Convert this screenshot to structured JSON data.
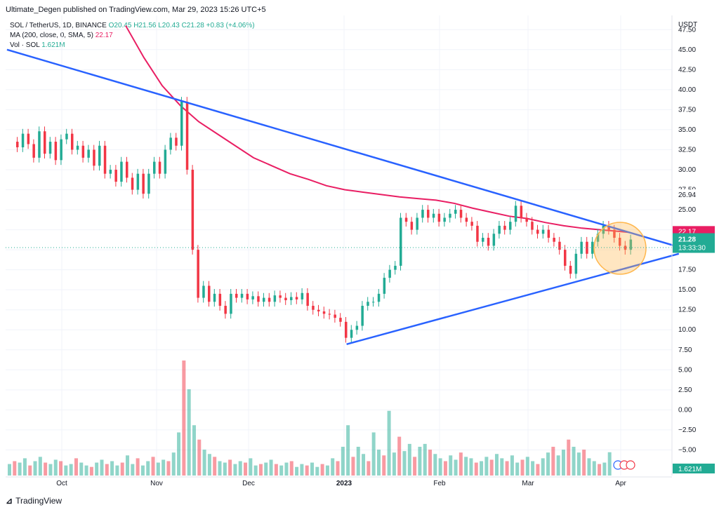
{
  "header": {
    "publisher": "Ultimate_Degen published on TradingView.com, Mar 29, 2023 15:26 UTC+5"
  },
  "legend": {
    "symbol": "SOL / TetherUS, 1D, BINANCE",
    "ohlc": "O20.45 H21.56 L20.43 C21.28 +0.83 (+4.06%)",
    "ma_label": "MA (200, close, 0, SMA, 5)",
    "ma_value": "22.17",
    "vol_label": "Vol · SOL",
    "vol_value": "1.621M"
  },
  "footer": {
    "brand": "TradingView"
  },
  "colors": {
    "up": "#22ab94",
    "down": "#f23645",
    "ma": "#e91e63",
    "trend": "#2962ff",
    "highlight": "#ffb74d"
  },
  "chart_data": {
    "type": "candlestick",
    "currency": "USDT",
    "y_ticks": [
      "47.50",
      "45.00",
      "42.50",
      "40.00",
      "37.50",
      "35.00",
      "32.50",
      "30.00",
      "27.50",
      "25.00",
      "22.50",
      "20.00",
      "17.50",
      "15.00",
      "12.50",
      "10.00",
      "7.50",
      "5.00",
      "2.50",
      "0.00",
      "−2.50",
      "−5.00"
    ],
    "x_ticks": [
      "Oct",
      "Nov",
      "Dec",
      "2023",
      "Feb",
      "Mar",
      "Apr"
    ],
    "price_labels": {
      "high": "26.94",
      "ma": "22.17",
      "last": "21.28",
      "countdown": "13:33:30",
      "volume": "1.621M"
    },
    "price_path": [
      [
        3,
        33.5
      ],
      [
        5,
        32.8
      ],
      [
        8,
        34.5
      ],
      [
        11,
        33.2
      ],
      [
        14,
        31.5
      ],
      [
        17,
        34.8
      ],
      [
        20,
        32.0
      ],
      [
        23,
        33.5
      ],
      [
        26,
        31.2
      ],
      [
        29,
        33.8
      ],
      [
        32,
        34.5
      ],
      [
        35,
        32.5
      ],
      [
        38,
        33.0
      ],
      [
        41,
        31.5
      ],
      [
        44,
        32.5
      ],
      [
        47,
        30.5
      ],
      [
        50,
        33.0
      ],
      [
        53,
        29.5
      ],
      [
        56,
        30.0
      ],
      [
        59,
        28.5
      ],
      [
        62,
        31.0
      ],
      [
        65,
        29.0
      ],
      [
        68,
        27.5
      ],
      [
        71,
        29.5
      ],
      [
        74,
        27.0
      ],
      [
        77,
        29.5
      ],
      [
        80,
        31.0
      ],
      [
        83,
        29.5
      ],
      [
        86,
        32.5
      ],
      [
        89,
        34.0
      ],
      [
        92,
        33.0
      ],
      [
        95,
        38.5
      ],
      [
        98,
        30.0
      ],
      [
        101,
        20.0
      ],
      [
        104,
        14.0
      ],
      [
        107,
        15.5
      ],
      [
        110,
        13.5
      ],
      [
        113,
        14.5
      ],
      [
        116,
        13.0
      ],
      [
        119,
        12.0
      ],
      [
        122,
        14.5
      ],
      [
        125,
        14.0
      ],
      [
        128,
        14.5
      ],
      [
        131,
        13.8
      ],
      [
        134,
        14.2
      ],
      [
        137,
        13.5
      ],
      [
        140,
        14.0
      ],
      [
        143,
        13.5
      ],
      [
        146,
        14.3
      ],
      [
        149,
        14.0
      ],
      [
        152,
        13.7
      ],
      [
        155,
        14.1
      ],
      [
        158,
        13.8
      ],
      [
        161,
        14.6
      ],
      [
        164,
        13.0
      ],
      [
        167,
        12.5
      ],
      [
        170,
        12.3
      ],
      [
        173,
        12.0
      ],
      [
        176,
        11.9
      ],
      [
        179,
        11.5
      ],
      [
        182,
        11.0
      ],
      [
        185,
        9.0
      ],
      [
        188,
        10.0
      ],
      [
        191,
        10.5
      ],
      [
        194,
        13.0
      ],
      [
        197,
        13.5
      ],
      [
        200,
        13.5
      ],
      [
        203,
        14.5
      ],
      [
        206,
        16.5
      ],
      [
        209,
        17.5
      ],
      [
        212,
        18.0
      ],
      [
        215,
        24.0
      ],
      [
        218,
        23.5
      ],
      [
        221,
        22.5
      ],
      [
        224,
        24.0
      ],
      [
        227,
        25.0
      ],
      [
        230,
        24.0
      ],
      [
        233,
        24.5
      ],
      [
        236,
        23.5
      ],
      [
        239,
        24.0
      ],
      [
        242,
        24.5
      ],
      [
        245,
        25.0
      ],
      [
        248,
        24.0
      ],
      [
        251,
        23.5
      ],
      [
        254,
        23.0
      ],
      [
        257,
        21.0
      ],
      [
        260,
        21.5
      ],
      [
        263,
        20.5
      ],
      [
        266,
        22.0
      ],
      [
        269,
        23.0
      ],
      [
        272,
        22.5
      ],
      [
        275,
        23.5
      ],
      [
        278,
        25.5
      ],
      [
        281,
        24.0
      ],
      [
        284,
        23.5
      ],
      [
        287,
        22.5
      ],
      [
        290,
        22.0
      ],
      [
        293,
        22.5
      ],
      [
        296,
        21.5
      ],
      [
        299,
        21.0
      ],
      [
        302,
        20.0
      ],
      [
        305,
        18.0
      ],
      [
        308,
        17.0
      ],
      [
        311,
        19.5
      ],
      [
        314,
        21.0
      ],
      [
        317,
        19.5
      ],
      [
        320,
        21.0
      ],
      [
        323,
        22.0
      ],
      [
        326,
        23.0
      ],
      [
        329,
        22.5
      ],
      [
        332,
        21.5
      ],
      [
        335,
        20.5
      ],
      [
        338,
        20.0
      ],
      [
        341,
        21.28
      ]
    ],
    "ma_path": [
      [
        65,
        48
      ],
      [
        75,
        44
      ],
      [
        85,
        40.5
      ],
      [
        95,
        38
      ],
      [
        105,
        36
      ],
      [
        115,
        34.5
      ],
      [
        125,
        33
      ],
      [
        135,
        31.5
      ],
      [
        145,
        30.5
      ],
      [
        155,
        29.5
      ],
      [
        165,
        28.8
      ],
      [
        175,
        28.0
      ],
      [
        185,
        27.5
      ],
      [
        195,
        27.2
      ],
      [
        205,
        26.9
      ],
      [
        215,
        26.6
      ],
      [
        225,
        26.4
      ],
      [
        235,
        26.2
      ],
      [
        245,
        25.8
      ],
      [
        255,
        25.2
      ],
      [
        265,
        24.7
      ],
      [
        275,
        24.2
      ],
      [
        285,
        23.9
      ],
      [
        295,
        23.4
      ],
      [
        305,
        23.0
      ],
      [
        315,
        22.7
      ],
      [
        325,
        22.5
      ],
      [
        335,
        22.3
      ],
      [
        341,
        22.17
      ]
    ],
    "upper_trend": [
      [
        0,
        45.0
      ],
      [
        368,
        20.35
      ]
    ],
    "lower_trend": [
      [
        186,
        8.2
      ],
      [
        368,
        19.5
      ]
    ],
    "volumes_millions": [
      0.8,
      1.0,
      0.9,
      1.2,
      0.7,
      1.0,
      1.3,
      0.9,
      0.8,
      1.1,
      1.0,
      0.7,
      0.8,
      1.2,
      0.9,
      0.7,
      0.6,
      0.9,
      1.1,
      0.8,
      1.0,
      0.7,
      0.9,
      1.4,
      0.8,
      1.2,
      0.7,
      1.0,
      1.3,
      0.9,
      1.1,
      1.0,
      1.6,
      3.0,
      8.0,
      6.0,
      3.5,
      2.5,
      1.8,
      1.5,
      1.3,
      1.0,
      0.9,
      1.1,
      0.8,
      1.0,
      0.9,
      1.2,
      0.7,
      0.8,
      0.9,
      1.1,
      0.8,
      0.7,
      0.9,
      1.0,
      0.6,
      0.8,
      0.7,
      0.9,
      0.6,
      0.8,
      0.7,
      1.2,
      1.0,
      2.0,
      3.5,
      1.3,
      2.0,
      1.5,
      1.0,
      3.0,
      1.8,
      1.4,
      4.5,
      1.6,
      2.7,
      1.7,
      2.2,
      1.3,
      2.0,
      2.2,
      1.8,
      1.5,
      1.2,
      1.0,
      1.4,
      1.1,
      1.6,
      1.3,
      1.2,
      0.9,
      1.0,
      1.3,
      1.1,
      1.5,
      1.2,
      1.0,
      1.4,
      0.9,
      1.1,
      1.3,
      1.0,
      0.8,
      1.2,
      1.6,
      2.0,
      1.4,
      1.8,
      2.5,
      2.0,
      1.6,
      1.8,
      1.2,
      1.0,
      0.8,
      0.9,
      1.621
    ]
  }
}
